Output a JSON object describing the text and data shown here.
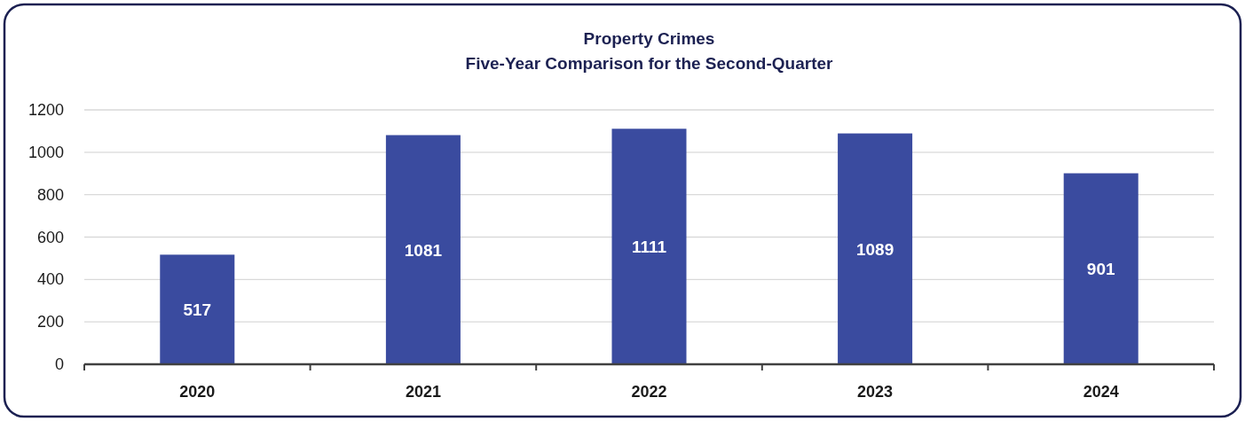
{
  "chart_data": {
    "type": "bar",
    "title": "Property Crimes",
    "subtitle": "Five-Year Comparison for the Second-Quarter",
    "categories": [
      "2020",
      "2021",
      "2022",
      "2023",
      "2024"
    ],
    "values": [
      517,
      1081,
      1111,
      1089,
      901
    ],
    "color": "#3a4b9f",
    "ylim": [
      0,
      1200
    ],
    "yticks": [
      0,
      200,
      400,
      600,
      800,
      1000,
      1200
    ],
    "grid": "y",
    "data_labels": true
  }
}
